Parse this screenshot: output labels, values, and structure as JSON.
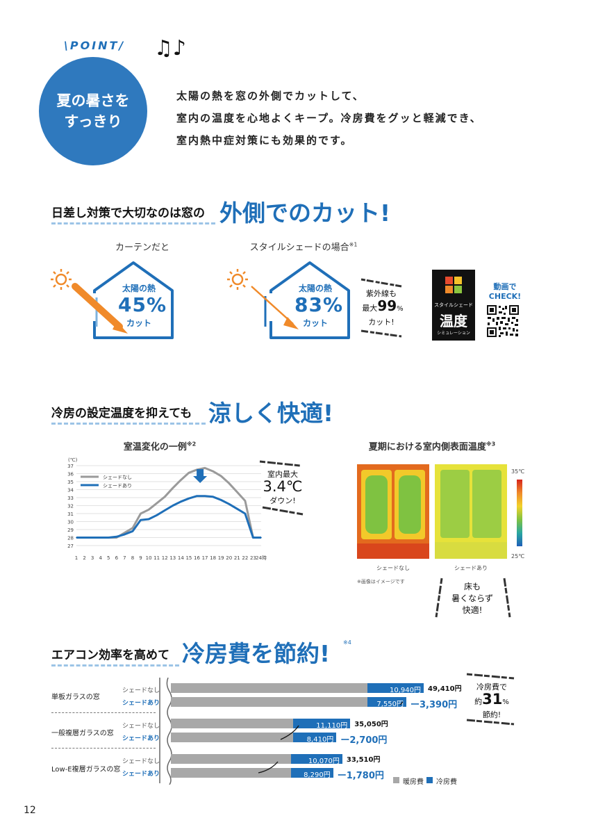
{
  "point": {
    "label": "\\POINT/",
    "title_line1": "夏の暑さを",
    "title_line2": "すっきり",
    "notes": "♫♪",
    "intro": [
      "太陽の熱を窓の外側でカットして、",
      "室内の温度を心地よくキープ。冷房費をグッと軽減でき、",
      "室内熱中症対策にも効果的です。"
    ]
  },
  "section1": {
    "heading_small": "日差し対策で大切なのは窓の",
    "heading_big": "外側でのカット!",
    "curtain": {
      "caption": "カーテンだと",
      "heat_label": "太陽の熱",
      "percent": "45%",
      "cut": "カット"
    },
    "shade": {
      "caption": "スタイルシェードの場合",
      "note_mark": "※1",
      "heat_label": "太陽の熱",
      "percent": "83%",
      "cut": "カット"
    },
    "uv": {
      "line1": "紫外線も",
      "line2_prefix": "最大",
      "line2_num": "99",
      "line2_unit": "%",
      "line3": "カット!"
    },
    "app": {
      "brand": "スタイルシェード",
      "title": "温度",
      "sub": "シミュレーション"
    },
    "video": {
      "line1": "動画で",
      "line2": "CHECK!"
    }
  },
  "section2": {
    "heading_small": "冷房の設定温度を抑えても",
    "heading_big": "涼しく快適!",
    "chart_caption": "室温変化の一例",
    "chart_note": "※2",
    "thermo_caption": "夏期における室内側表面温度",
    "thermo_note": "※3",
    "drop": {
      "line1": "室内最大",
      "value": "3.4℃",
      "line3": "ダウン!"
    },
    "scale_top": "35℃",
    "scale_bottom": "25℃",
    "img_left_label": "シェードなし",
    "img_right_label": "シェードあり",
    "img_note": "※画像はイメージです",
    "comfort": {
      "line1": "床も",
      "line2": "暑くならず",
      "line3": "快適!"
    }
  },
  "chart_data": {
    "type": "line",
    "title": "室温変化の一例",
    "xlabel": "時",
    "ylabel": "(℃)",
    "x": [
      1,
      2,
      3,
      4,
      5,
      6,
      7,
      8,
      9,
      10,
      11,
      12,
      13,
      14,
      15,
      16,
      17,
      18,
      19,
      20,
      21,
      22,
      23,
      24
    ],
    "x_tick_labels": [
      "1",
      "2",
      "3",
      "4",
      "5",
      "6",
      "7",
      "8",
      "9",
      "10",
      "11",
      "12",
      "13",
      "14",
      "15",
      "16",
      "17",
      "18",
      "19",
      "20",
      "21",
      "22",
      "23",
      "24時"
    ],
    "ylim": [
      27,
      37
    ],
    "y_ticks": [
      27,
      28,
      29,
      30,
      31,
      32,
      33,
      34,
      35,
      36,
      37
    ],
    "grid": true,
    "legend": "top-left",
    "series": [
      {
        "name": "シェードなし",
        "color": "#9a9a9a",
        "values": [
          28,
          28,
          28,
          28,
          28,
          28,
          28.6,
          29.2,
          31,
          31.5,
          32.3,
          33.1,
          34.2,
          35.2,
          36.1,
          36.5,
          36.7,
          36.3,
          35.7,
          34.8,
          33.7,
          32.6,
          28,
          28
        ]
      },
      {
        "name": "シェードあり",
        "color": "#1f6fb8",
        "values": [
          28,
          28,
          28,
          28,
          28,
          28.1,
          28.4,
          28.8,
          30.2,
          30.3,
          30.8,
          31.4,
          32,
          32.5,
          32.9,
          33.2,
          33.2,
          33.1,
          32.7,
          32.2,
          31.6,
          31,
          28,
          28
        ]
      }
    ]
  },
  "section3": {
    "heading_small": "エアコン効率を高めて",
    "heading_big": "冷房費を節約!",
    "heading_note": "※4",
    "groups": [
      {
        "name": "単板ガラスの窓",
        "rows": [
          {
            "label": "シェードなし",
            "heating": 38470,
            "cooling": 10940,
            "cooling_label": "10,940円",
            "total": "49,410円",
            "diff": ""
          },
          {
            "label": "シェードあり",
            "heating": 38470,
            "cooling": 7550,
            "cooling_label": "7,550円",
            "total": "",
            "diff": "ー3,390円"
          }
        ]
      },
      {
        "name": "一般複層ガラスの窓",
        "rows": [
          {
            "label": "シェードなし",
            "heating": 23940,
            "cooling": 11110,
            "cooling_label": "11,110円",
            "total": "35,050円",
            "diff": ""
          },
          {
            "label": "シェードあり",
            "heating": 23940,
            "cooling": 8410,
            "cooling_label": "8,410円",
            "total": "",
            "diff": "ー2,700円"
          }
        ]
      },
      {
        "name": "Low-E複層ガラスの窓",
        "rows": [
          {
            "label": "シェードなし",
            "heating": 23440,
            "cooling": 10070,
            "cooling_label": "10,070円",
            "total": "33,510円",
            "diff": ""
          },
          {
            "label": "シェードあり",
            "heating": 23440,
            "cooling": 8290,
            "cooling_label": "8,290円",
            "total": "",
            "diff": "ー1,780円"
          }
        ]
      }
    ],
    "legend": {
      "heating": "暖房費",
      "cooling": "冷房費",
      "heating_color": "#a8a8a8",
      "cooling_color": "#1f6fb8"
    },
    "saving": {
      "line1": "冷房費で",
      "line2_prefix": "約",
      "line2_num": "31",
      "line2_unit": "%",
      "line3": "節約!"
    }
  },
  "page_number": "12"
}
